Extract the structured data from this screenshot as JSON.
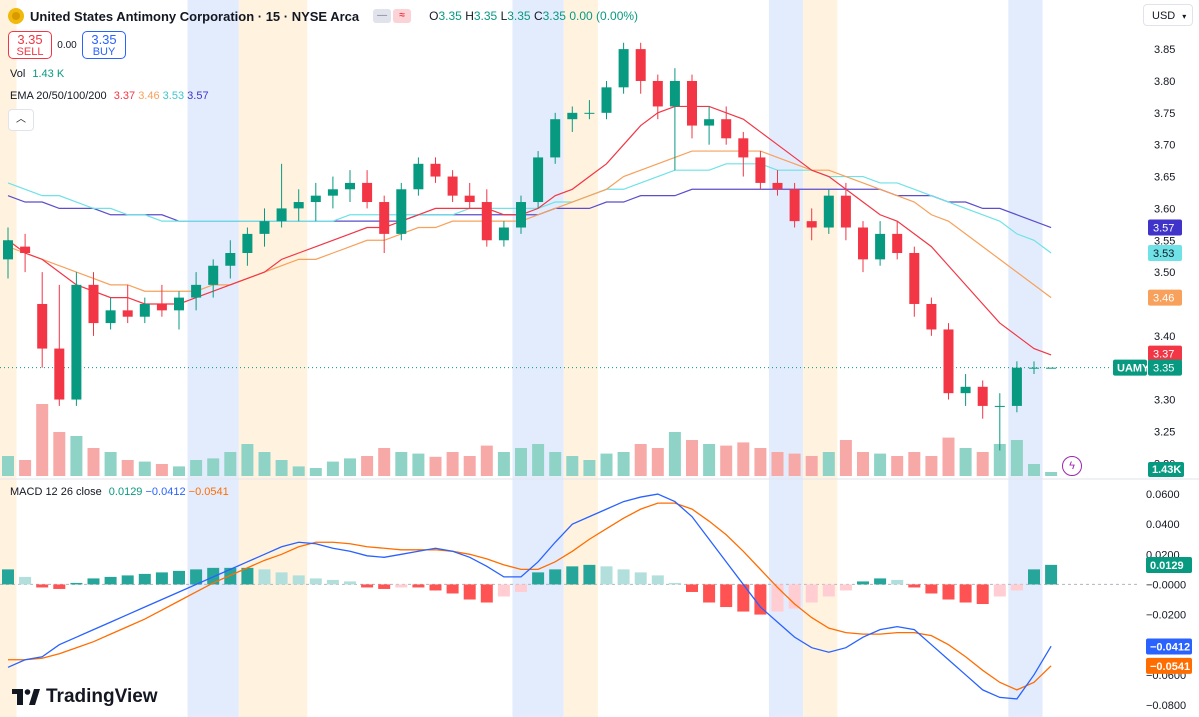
{
  "header": {
    "title": "United States Antimony Corporation · 15 · NYSE Arca",
    "ohlc": [
      {
        "label": "O",
        "value": "3.35"
      },
      {
        "label": "H",
        "value": "3.35"
      },
      {
        "label": "L",
        "value": "3.35"
      },
      {
        "label": "C",
        "value": "3.35"
      }
    ],
    "change": "0.00 (0.00%)",
    "currency": "USD"
  },
  "trade": {
    "sell_price": "3.35",
    "sell_label": "SELL",
    "buy_price": "3.35",
    "buy_label": "BUY",
    "spread": "0.00"
  },
  "legend": {
    "vol_label": "Vol",
    "vol_value": "1.43 K",
    "ema_label": "EMA 20/50/100/200",
    "ema_values": [
      "3.37",
      "3.46",
      "3.53",
      "3.57"
    ],
    "macd_label": "MACD 12 26 close",
    "macd_values": [
      "0.0129",
      "−0.0412",
      "−0.0541"
    ]
  },
  "branding": {
    "logo_text": "TradingView"
  },
  "colors": {
    "up": "#089981",
    "down": "#f23645",
    "ema20": "#f23645",
    "ema50": "#f7a15c",
    "ema100": "#6ee2e6",
    "ema200": "#5b4ecb",
    "macd_line": "#2962ff",
    "signal_line": "#ff6d00",
    "hist_up_strong": "#26a69a",
    "hist_up_weak": "#b2dfdb",
    "hist_down_strong": "#ff5252",
    "hist_down_weak": "#ffcdd2",
    "session_pre": "#fff3e0",
    "session_post": "#e3ecfd"
  },
  "chart_data": [
    {
      "type": "candlestick",
      "symbol": "UAMY",
      "last_price": "3.35",
      "price_axis_ticks": [
        "3.85",
        "3.80",
        "3.75",
        "3.70",
        "3.65",
        "3.60",
        "3.55",
        "3.50",
        "3.40",
        "3.30",
        "3.25",
        "3.20"
      ],
      "ylim": [
        3.18,
        3.88
      ],
      "sessions": [
        {
          "type": "pre",
          "from": 0,
          "to": 1
        },
        {
          "type": "post",
          "from": 11,
          "to": 14
        },
        {
          "type": "pre",
          "from": 14,
          "to": 18
        },
        {
          "type": "post",
          "from": 30,
          "to": 33
        },
        {
          "type": "pre",
          "from": 33,
          "to": 35
        },
        {
          "type": "post",
          "from": 45,
          "to": 47
        },
        {
          "type": "pre",
          "from": 47,
          "to": 49
        },
        {
          "type": "post",
          "from": 59,
          "to": 61
        }
      ],
      "candles": [
        {
          "o": 3.52,
          "h": 3.57,
          "l": 3.49,
          "c": 3.55,
          "v": 25
        },
        {
          "o": 3.54,
          "h": 3.56,
          "l": 3.5,
          "c": 3.53,
          "v": 20
        },
        {
          "o": 3.45,
          "h": 3.5,
          "l": 3.35,
          "c": 3.38,
          "v": 90
        },
        {
          "o": 3.38,
          "h": 3.48,
          "l": 3.29,
          "c": 3.3,
          "v": 55
        },
        {
          "o": 3.3,
          "h": 3.5,
          "l": 3.29,
          "c": 3.48,
          "v": 50
        },
        {
          "o": 3.48,
          "h": 3.5,
          "l": 3.4,
          "c": 3.42,
          "v": 35
        },
        {
          "o": 3.42,
          "h": 3.46,
          "l": 3.41,
          "c": 3.44,
          "v": 30
        },
        {
          "o": 3.44,
          "h": 3.48,
          "l": 3.42,
          "c": 3.43,
          "v": 20
        },
        {
          "o": 3.43,
          "h": 3.46,
          "l": 3.42,
          "c": 3.45,
          "v": 18
        },
        {
          "o": 3.45,
          "h": 3.48,
          "l": 3.43,
          "c": 3.44,
          "v": 15
        },
        {
          "o": 3.44,
          "h": 3.47,
          "l": 3.41,
          "c": 3.46,
          "v": 12
        },
        {
          "o": 3.46,
          "h": 3.5,
          "l": 3.44,
          "c": 3.48,
          "v": 20
        },
        {
          "o": 3.48,
          "h": 3.52,
          "l": 3.46,
          "c": 3.51,
          "v": 22
        },
        {
          "o": 3.51,
          "h": 3.55,
          "l": 3.49,
          "c": 3.53,
          "v": 30
        },
        {
          "o": 3.53,
          "h": 3.57,
          "l": 3.51,
          "c": 3.56,
          "v": 40
        },
        {
          "o": 3.56,
          "h": 3.6,
          "l": 3.54,
          "c": 3.58,
          "v": 30
        },
        {
          "o": 3.58,
          "h": 3.67,
          "l": 3.57,
          "c": 3.6,
          "v": 20
        },
        {
          "o": 3.6,
          "h": 3.63,
          "l": 3.58,
          "c": 3.61,
          "v": 12
        },
        {
          "o": 3.61,
          "h": 3.64,
          "l": 3.58,
          "c": 3.62,
          "v": 10
        },
        {
          "o": 3.62,
          "h": 3.65,
          "l": 3.6,
          "c": 3.63,
          "v": 18
        },
        {
          "o": 3.63,
          "h": 3.66,
          "l": 3.61,
          "c": 3.64,
          "v": 22
        },
        {
          "o": 3.64,
          "h": 3.66,
          "l": 3.6,
          "c": 3.61,
          "v": 25
        },
        {
          "o": 3.61,
          "h": 3.62,
          "l": 3.53,
          "c": 3.56,
          "v": 35
        },
        {
          "o": 3.56,
          "h": 3.64,
          "l": 3.55,
          "c": 3.63,
          "v": 30
        },
        {
          "o": 3.63,
          "h": 3.68,
          "l": 3.62,
          "c": 3.67,
          "v": 28
        },
        {
          "o": 3.67,
          "h": 3.68,
          "l": 3.64,
          "c": 3.65,
          "v": 24
        },
        {
          "o": 3.65,
          "h": 3.66,
          "l": 3.61,
          "c": 3.62,
          "v": 30
        },
        {
          "o": 3.62,
          "h": 3.64,
          "l": 3.6,
          "c": 3.61,
          "v": 25
        },
        {
          "o": 3.61,
          "h": 3.63,
          "l": 3.54,
          "c": 3.55,
          "v": 38
        },
        {
          "o": 3.55,
          "h": 3.58,
          "l": 3.54,
          "c": 3.57,
          "v": 30
        },
        {
          "o": 3.57,
          "h": 3.62,
          "l": 3.56,
          "c": 3.61,
          "v": 35
        },
        {
          "o": 3.61,
          "h": 3.69,
          "l": 3.6,
          "c": 3.68,
          "v": 40
        },
        {
          "o": 3.68,
          "h": 3.75,
          "l": 3.67,
          "c": 3.74,
          "v": 30
        },
        {
          "o": 3.74,
          "h": 3.76,
          "l": 3.72,
          "c": 3.75,
          "v": 25
        },
        {
          "o": 3.75,
          "h": 3.77,
          "l": 3.74,
          "c": 3.75,
          "v": 20
        },
        {
          "o": 3.75,
          "h": 3.8,
          "l": 3.74,
          "c": 3.79,
          "v": 28
        },
        {
          "o": 3.79,
          "h": 3.86,
          "l": 3.78,
          "c": 3.85,
          "v": 30
        },
        {
          "o": 3.85,
          "h": 3.86,
          "l": 3.78,
          "c": 3.8,
          "v": 40
        },
        {
          "o": 3.8,
          "h": 3.81,
          "l": 3.74,
          "c": 3.76,
          "v": 35
        },
        {
          "o": 3.76,
          "h": 3.82,
          "l": 3.66,
          "c": 3.8,
          "v": 55
        },
        {
          "o": 3.8,
          "h": 3.81,
          "l": 3.71,
          "c": 3.73,
          "v": 45
        },
        {
          "o": 3.73,
          "h": 3.76,
          "l": 3.7,
          "c": 3.74,
          "v": 40
        },
        {
          "o": 3.74,
          "h": 3.76,
          "l": 3.7,
          "c": 3.71,
          "v": 38
        },
        {
          "o": 3.71,
          "h": 3.72,
          "l": 3.65,
          "c": 3.68,
          "v": 42
        },
        {
          "o": 3.68,
          "h": 3.69,
          "l": 3.63,
          "c": 3.64,
          "v": 35
        },
        {
          "o": 3.64,
          "h": 3.66,
          "l": 3.62,
          "c": 3.63,
          "v": 30
        },
        {
          "o": 3.63,
          "h": 3.64,
          "l": 3.57,
          "c": 3.58,
          "v": 28
        },
        {
          "o": 3.58,
          "h": 3.6,
          "l": 3.55,
          "c": 3.57,
          "v": 25
        },
        {
          "o": 3.57,
          "h": 3.63,
          "l": 3.56,
          "c": 3.62,
          "v": 30
        },
        {
          "o": 3.62,
          "h": 3.64,
          "l": 3.55,
          "c": 3.57,
          "v": 45
        },
        {
          "o": 3.57,
          "h": 3.58,
          "l": 3.5,
          "c": 3.52,
          "v": 30
        },
        {
          "o": 3.52,
          "h": 3.58,
          "l": 3.51,
          "c": 3.56,
          "v": 28
        },
        {
          "o": 3.56,
          "h": 3.58,
          "l": 3.52,
          "c": 3.53,
          "v": 25
        },
        {
          "o": 3.53,
          "h": 3.54,
          "l": 3.43,
          "c": 3.45,
          "v": 30
        },
        {
          "o": 3.45,
          "h": 3.46,
          "l": 3.4,
          "c": 3.41,
          "v": 25
        },
        {
          "o": 3.41,
          "h": 3.42,
          "l": 3.3,
          "c": 3.31,
          "v": 48
        },
        {
          "o": 3.31,
          "h": 3.34,
          "l": 3.29,
          "c": 3.32,
          "v": 35
        },
        {
          "o": 3.32,
          "h": 3.33,
          "l": 3.27,
          "c": 3.29,
          "v": 30
        },
        {
          "o": 3.29,
          "h": 3.31,
          "l": 3.22,
          "c": 3.29,
          "v": 40
        },
        {
          "o": 3.29,
          "h": 3.36,
          "l": 3.28,
          "c": 3.35,
          "v": 45
        },
        {
          "o": 3.35,
          "h": 3.36,
          "l": 3.34,
          "c": 3.35,
          "v": 15
        },
        {
          "o": 3.35,
          "h": 3.35,
          "l": 3.35,
          "c": 3.35,
          "v": 5
        }
      ],
      "ema": {
        "20": [
          3.55,
          3.53,
          3.52,
          3.5,
          3.48,
          3.47,
          3.46,
          3.46,
          3.45,
          3.45,
          3.45,
          3.46,
          3.47,
          3.48,
          3.49,
          3.5,
          3.52,
          3.53,
          3.54,
          3.55,
          3.56,
          3.57,
          3.57,
          3.58,
          3.59,
          3.6,
          3.6,
          3.6,
          3.6,
          3.59,
          3.59,
          3.6,
          3.62,
          3.63,
          3.65,
          3.67,
          3.7,
          3.73,
          3.75,
          3.76,
          3.76,
          3.76,
          3.75,
          3.74,
          3.72,
          3.7,
          3.68,
          3.66,
          3.65,
          3.63,
          3.61,
          3.59,
          3.58,
          3.56,
          3.54,
          3.51,
          3.48,
          3.45,
          3.42,
          3.4,
          3.38,
          3.37
        ],
        "50": [
          3.54,
          3.53,
          3.52,
          3.51,
          3.5,
          3.49,
          3.48,
          3.48,
          3.47,
          3.47,
          3.47,
          3.47,
          3.48,
          3.48,
          3.49,
          3.5,
          3.51,
          3.52,
          3.52,
          3.53,
          3.54,
          3.55,
          3.55,
          3.56,
          3.57,
          3.57,
          3.58,
          3.58,
          3.58,
          3.58,
          3.58,
          3.59,
          3.6,
          3.61,
          3.62,
          3.63,
          3.65,
          3.66,
          3.67,
          3.68,
          3.69,
          3.69,
          3.69,
          3.69,
          3.69,
          3.68,
          3.67,
          3.66,
          3.66,
          3.65,
          3.64,
          3.63,
          3.62,
          3.61,
          3.59,
          3.58,
          3.56,
          3.54,
          3.52,
          3.5,
          3.48,
          3.46
        ],
        "100": [
          3.64,
          3.63,
          3.62,
          3.62,
          3.61,
          3.6,
          3.6,
          3.59,
          3.59,
          3.58,
          3.58,
          3.58,
          3.58,
          3.58,
          3.58,
          3.58,
          3.58,
          3.58,
          3.58,
          3.58,
          3.59,
          3.59,
          3.59,
          3.59,
          3.59,
          3.59,
          3.59,
          3.6,
          3.6,
          3.6,
          3.6,
          3.6,
          3.61,
          3.61,
          3.62,
          3.63,
          3.63,
          3.64,
          3.65,
          3.66,
          3.66,
          3.66,
          3.67,
          3.67,
          3.67,
          3.66,
          3.66,
          3.66,
          3.65,
          3.65,
          3.65,
          3.64,
          3.64,
          3.63,
          3.62,
          3.61,
          3.6,
          3.59,
          3.58,
          3.56,
          3.55,
          3.53
        ],
        "200": [
          3.62,
          3.61,
          3.61,
          3.6,
          3.6,
          3.6,
          3.59,
          3.59,
          3.59,
          3.59,
          3.58,
          3.58,
          3.58,
          3.58,
          3.58,
          3.58,
          3.58,
          3.58,
          3.58,
          3.58,
          3.58,
          3.58,
          3.58,
          3.58,
          3.59,
          3.59,
          3.59,
          3.59,
          3.59,
          3.59,
          3.59,
          3.59,
          3.6,
          3.6,
          3.6,
          3.61,
          3.61,
          3.62,
          3.62,
          3.62,
          3.63,
          3.63,
          3.63,
          3.63,
          3.63,
          3.63,
          3.63,
          3.63,
          3.63,
          3.63,
          3.63,
          3.63,
          3.62,
          3.62,
          3.62,
          3.61,
          3.61,
          3.6,
          3.6,
          3.59,
          3.58,
          3.57
        ]
      },
      "price_labels": [
        {
          "text": "3.57",
          "value": 3.57,
          "color": "#3f33c9",
          "text_color": "#ffffff"
        },
        {
          "text": "3.53",
          "value": 3.53,
          "color": "#6ee2e6",
          "text_color": "#131722"
        },
        {
          "text": "3.46",
          "value": 3.46,
          "color": "#f7a15c",
          "text_color": "#ffffff"
        },
        {
          "text": "3.37",
          "value": 3.372,
          "color": "#f23645",
          "text_color": "#ffffff"
        },
        {
          "text": "3.35",
          "value": 3.35,
          "color": "#089981",
          "text_color": "#ffffff",
          "tag": "UAMY"
        }
      ],
      "volume_label": "1.43K"
    },
    {
      "type": "macd",
      "axis_ticks": [
        "0.0600",
        "0.0400",
        "0.0200",
        "−0.0000",
        "−0.0200",
        "−0.0400",
        "−0.0600",
        "−0.0800"
      ],
      "ylim": [
        -0.088,
        0.068
      ],
      "macd": [
        -0.055,
        -0.05,
        -0.048,
        -0.04,
        -0.035,
        -0.03,
        -0.025,
        -0.02,
        -0.015,
        -0.01,
        -0.005,
        0.0,
        0.005,
        0.01,
        0.015,
        0.02,
        0.025,
        0.028,
        0.027,
        0.024,
        0.022,
        0.019,
        0.018,
        0.02,
        0.022,
        0.024,
        0.022,
        0.018,
        0.012,
        0.005,
        0.005,
        0.015,
        0.028,
        0.04,
        0.045,
        0.05,
        0.055,
        0.058,
        0.06,
        0.055,
        0.045,
        0.03,
        0.015,
        0.0,
        -0.015,
        -0.025,
        -0.035,
        -0.042,
        -0.045,
        -0.042,
        -0.035,
        -0.03,
        -0.028,
        -0.03,
        -0.04,
        -0.05,
        -0.06,
        -0.07,
        -0.075,
        -0.076,
        -0.06,
        -0.041
      ],
      "signal": [
        -0.05,
        -0.05,
        -0.049,
        -0.046,
        -0.042,
        -0.038,
        -0.033,
        -0.028,
        -0.023,
        -0.017,
        -0.011,
        -0.005,
        0.001,
        0.006,
        0.011,
        0.016,
        0.02,
        0.025,
        0.028,
        0.028,
        0.027,
        0.025,
        0.024,
        0.023,
        0.023,
        0.023,
        0.022,
        0.02,
        0.017,
        0.013,
        0.01,
        0.01,
        0.015,
        0.022,
        0.03,
        0.037,
        0.044,
        0.05,
        0.054,
        0.054,
        0.05,
        0.042,
        0.033,
        0.022,
        0.01,
        -0.002,
        -0.013,
        -0.022,
        -0.029,
        -0.032,
        -0.033,
        -0.033,
        -0.032,
        -0.032,
        -0.034,
        -0.04,
        -0.048,
        -0.057,
        -0.065,
        -0.07,
        -0.065,
        -0.054
      ],
      "histogram": [
        0.01,
        0.005,
        -0.002,
        -0.003,
        0.001,
        0.004,
        0.005,
        0.006,
        0.007,
        0.008,
        0.009,
        0.01,
        0.011,
        0.011,
        0.011,
        0.01,
        0.008,
        0.006,
        0.004,
        0.003,
        0.002,
        -0.002,
        -0.003,
        -0.002,
        -0.002,
        -0.004,
        -0.006,
        -0.01,
        -0.012,
        -0.008,
        -0.005,
        0.008,
        0.01,
        0.012,
        0.013,
        0.012,
        0.01,
        0.008,
        0.006,
        0.001,
        -0.005,
        -0.012,
        -0.015,
        -0.018,
        -0.02,
        -0.018,
        -0.016,
        -0.012,
        -0.008,
        -0.004,
        0.002,
        0.004,
        0.003,
        -0.002,
        -0.006,
        -0.01,
        -0.012,
        -0.013,
        -0.008,
        -0.004,
        0.01,
        0.013
      ]
    }
  ]
}
